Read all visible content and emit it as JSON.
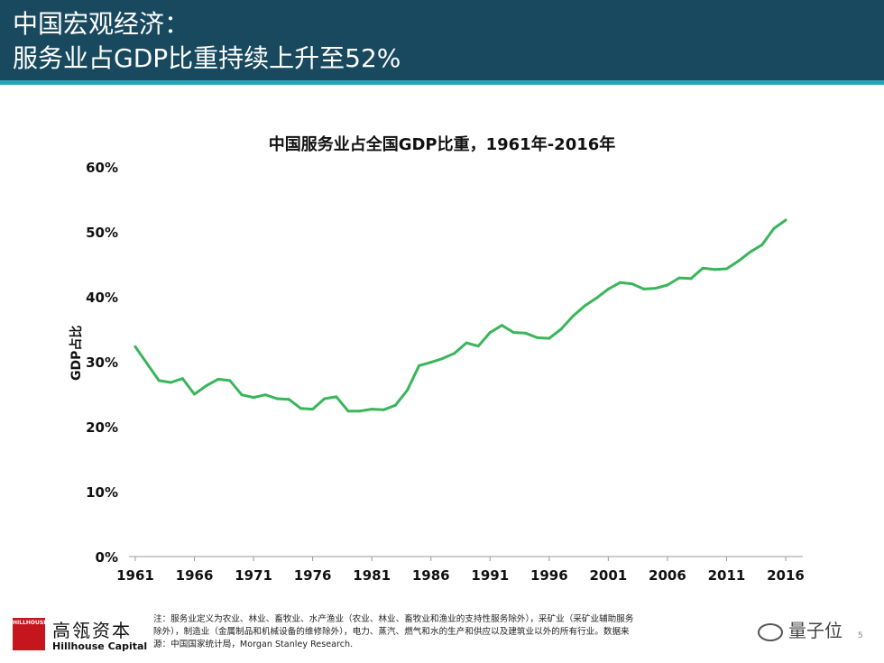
{
  "header": {
    "title_line1": "中国宏观经济：",
    "title_line2": "服务业占GDP比重持续上升至52%",
    "bg_color": "#18495e",
    "accent_color": "#2aa3b4"
  },
  "chart_data": {
    "type": "line",
    "title": "中国服务业占全国GDP比重，1961年-2016年",
    "ylabel": "GDP占比",
    "xlabel": "",
    "ylim": [
      0,
      60
    ],
    "yticks": [
      "0%",
      "10%",
      "20%",
      "30%",
      "40%",
      "50%",
      "60%"
    ],
    "xticks": [
      "1961",
      "1966",
      "1971",
      "1976",
      "1981",
      "1986",
      "1991",
      "1996",
      "2001",
      "2006",
      "2011",
      "2016"
    ],
    "line_color": "#3ab55a",
    "grid": false,
    "series": [
      {
        "name": "服务业占GDP比重",
        "x": [
          1961,
          1962,
          1963,
          1964,
          1965,
          1966,
          1967,
          1968,
          1969,
          1970,
          1971,
          1972,
          1973,
          1974,
          1975,
          1976,
          1977,
          1978,
          1979,
          1980,
          1981,
          1982,
          1983,
          1984,
          1985,
          1986,
          1987,
          1988,
          1989,
          1990,
          1991,
          1992,
          1993,
          1994,
          1995,
          1996,
          1997,
          1998,
          1999,
          2000,
          2001,
          2002,
          2003,
          2004,
          2005,
          2006,
          2007,
          2008,
          2009,
          2010,
          2011,
          2012,
          2013,
          2014,
          2015,
          2016
        ],
        "values": [
          32.3,
          29.7,
          27.1,
          26.8,
          27.4,
          25.0,
          26.3,
          27.3,
          27.1,
          24.9,
          24.5,
          24.9,
          24.3,
          24.2,
          22.8,
          22.7,
          24.3,
          24.6,
          22.4,
          22.4,
          22.7,
          22.6,
          23.3,
          25.6,
          29.4,
          29.9,
          30.5,
          31.3,
          32.9,
          32.4,
          34.5,
          35.6,
          34.5,
          34.4,
          33.7,
          33.6,
          35.0,
          37.0,
          38.6,
          39.8,
          41.2,
          42.2,
          42.0,
          41.2,
          41.3,
          41.8,
          42.9,
          42.8,
          44.4,
          44.2,
          44.3,
          45.5,
          46.9,
          48.0,
          50.5,
          51.8
        ]
      }
    ]
  },
  "footer": {
    "logo_mark": "HILLHOUSE",
    "logo_cn": "高瓴资本",
    "logo_en": "Hillhouse Capital",
    "note_line1": "注：服务业定义为农业、林业、畜牧业、水产渔业（农业、林业、畜牧业和渔业的支持性服务除外），采矿业（采矿业辅助服务",
    "note_line2": "除外），制造业（金属制品和机械设备的维修除外），电力、蒸汽、燃气和水的生产和供应以及建筑业以外的所有行业。数据来",
    "note_line3": "源：中国国家统计局，Morgan Stanley Research.",
    "watermark": "量子位",
    "page_number": "5"
  }
}
